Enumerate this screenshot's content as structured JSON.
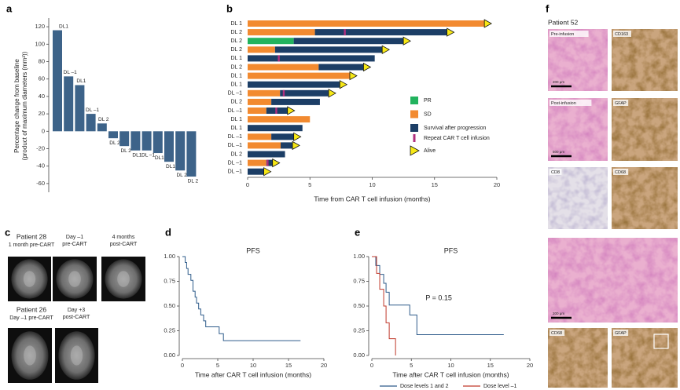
{
  "chart_data": [
    {
      "panel": "a",
      "type": "bar",
      "ylabel": [
        "Percentage change from baseline",
        "(product of maximum diameters (mm²))"
      ],
      "categories": [
        "DL1",
        "DL –1",
        "DL1",
        "DL –1",
        "DL 2",
        "DL 2",
        "DL 2",
        "DL1",
        "DL –1",
        "DL1",
        "DL1",
        "DL 2",
        "DL 2"
      ],
      "category_colors": [
        "#d6338a",
        "#8c8c8c",
        "#d6338a",
        "#8c8c8c",
        "#d9a21c",
        "#d9a21c",
        "#d9a21c",
        "#d6338a",
        "#8c8c8c",
        "#d6338a",
        "#d6338a",
        "#d9a21c",
        "#d9a21c"
      ],
      "values": [
        116,
        63,
        53,
        20,
        9,
        -8,
        -17,
        -22,
        -22,
        -25,
        -35,
        -45,
        -52
      ],
      "color": "#3d6389",
      "ylim": [
        -70,
        130
      ],
      "yticks": [
        -60,
        -40,
        -20,
        0,
        20,
        40,
        60,
        80,
        100,
        120
      ]
    },
    {
      "panel": "b",
      "type": "swimmer",
      "xlabel": "Time from CAR T cell infusion (months)",
      "categories": [
        "DL 1",
        "DL 2",
        "DL 2",
        "DL 2",
        "DL 1",
        "DL 2",
        "DL 1",
        "DL 1",
        "DL –1",
        "DL 2",
        "DL –1",
        "DL 1",
        "DL 1",
        "DL –1",
        "DL –1",
        "DL 2",
        "DL –1",
        "DL –1"
      ],
      "category_colors": [
        "#d6338a",
        "#d9a21c",
        "#d9a21c",
        "#d9a21c",
        "#d6338a",
        "#d9a21c",
        "#d6338a",
        "#d6338a",
        "#8c8c8c",
        "#d9a21c",
        "#8c8c8c",
        "#d6338a",
        "#d6338a",
        "#8c8c8c",
        "#8c8c8c",
        "#d9a21c",
        "#8c8c8c",
        "#8c8c8c"
      ],
      "series": [
        {
          "name": "PR",
          "color": "#22b35e",
          "values": [
            null,
            null,
            3.7,
            null,
            null,
            null,
            null,
            null,
            null,
            null,
            null,
            null,
            null,
            null,
            null,
            null,
            null,
            null
          ]
        },
        {
          "name": "SD",
          "color": "#f28a30",
          "values": [
            19,
            5.4,
            null,
            2.2,
            null,
            5.7,
            8.2,
            null,
            2.6,
            1.9,
            1.5,
            5.0,
            null,
            1.9,
            2.65,
            null,
            1.5,
            null
          ]
        },
        {
          "name": "Survival after progression",
          "color": "#1c3e66",
          "values": [
            null,
            10.6,
            8.8,
            8.6,
            10.2,
            3.6,
            null,
            7.4,
            3.9,
            3.9,
            1.7,
            null,
            4.4,
            1.8,
            0.95,
            3.0,
            0.5,
            1.3
          ]
        }
      ],
      "repeat_infusion": {
        "name": "Repeat CAR T cell infusion",
        "color": "#b02f7e",
        "x": [
          null,
          7.8,
          null,
          null,
          2.5,
          null,
          null,
          null,
          2.9,
          null,
          2.3,
          null,
          null,
          null,
          null,
          null,
          1.6,
          null
        ]
      },
      "alive": {
        "name": "Alive",
        "color": "#f7e816",
        "values": [
          true,
          true,
          true,
          true,
          false,
          true,
          true,
          true,
          true,
          false,
          true,
          false,
          false,
          true,
          true,
          false,
          true,
          true
        ]
      },
      "xlim": [
        0,
        20
      ],
      "xticks": [
        0,
        5,
        10,
        15,
        20
      ]
    },
    {
      "panel": "d",
      "type": "km",
      "title": "PFS",
      "xlabel": "Time after CAR T cell infusion (months)",
      "series": [
        {
          "name": "PFS",
          "color": "#2e5b8a",
          "x": [
            0,
            0.4,
            0.6,
            0.8,
            1.2,
            1.5,
            1.8,
            2.0,
            2.3,
            2.6,
            3.0,
            3.3,
            5.2,
            5.8,
            16.7
          ],
          "values": [
            1,
            0.94,
            0.88,
            0.82,
            0.76,
            0.65,
            0.59,
            0.53,
            0.47,
            0.41,
            0.35,
            0.29,
            0.22,
            0.15,
            0.15
          ]
        }
      ],
      "legend": false,
      "xlim": [
        0,
        20
      ],
      "xticks": [
        0,
        5,
        10,
        15,
        20
      ],
      "ylim": [
        0,
        1
      ],
      "yticks": [
        {
          "value": 0,
          "label": "0.00"
        },
        {
          "value": 0.25,
          "label": "0.25"
        },
        {
          "value": 0.5,
          "label": "0.50"
        },
        {
          "value": 0.75,
          "label": "0.75"
        },
        {
          "value": 1,
          "label": "1.00"
        }
      ]
    },
    {
      "panel": "e",
      "type": "km",
      "title": "PFS",
      "xlabel": "Time after CAR T cell infusion (months)",
      "annotation": "P = 0.15",
      "series": [
        {
          "name": "Dose levels 1 and 2",
          "color": "#2e5b8a",
          "x": [
            0,
            0.5,
            1.0,
            1.5,
            1.8,
            2.2,
            4.8,
            5.7,
            16.7
          ],
          "values": [
            1,
            0.91,
            0.82,
            0.73,
            0.64,
            0.51,
            0.41,
            0.21,
            0.21
          ]
        },
        {
          "name": "Dose level –1",
          "color": "#c0392b",
          "x": [
            0,
            0.6,
            1.0,
            1.5,
            1.8,
            2.2,
            3.0
          ],
          "values": [
            1,
            0.83,
            0.67,
            0.5,
            0.33,
            0.17,
            0
          ]
        }
      ],
      "legend": true,
      "xlim": [
        0,
        20
      ],
      "xticks": [
        0,
        5,
        10,
        15,
        20
      ],
      "ylim": [
        0,
        1
      ],
      "yticks": [
        {
          "value": 0,
          "label": "0.00"
        },
        {
          "value": 0.25,
          "label": "0.25"
        },
        {
          "value": 0.5,
          "label": "0.50"
        },
        {
          "value": 0.75,
          "label": "0.75"
        },
        {
          "value": 1,
          "label": "1.00"
        }
      ]
    }
  ],
  "panel_c": {
    "label": "c",
    "patients": [
      {
        "name": "Patient 28",
        "images": [
          {
            "caption": [
              "1 month pre-CART"
            ]
          },
          {
            "caption": [
              "Day –1",
              "pre-CART"
            ]
          },
          {
            "caption": [
              "4 months",
              "post-CART"
            ]
          }
        ]
      },
      {
        "name": "Patient 26",
        "images": [
          {
            "caption": [
              "Day –1 pre-CART"
            ]
          },
          {
            "caption": [
              "Day +3",
              "post-CART"
            ]
          }
        ]
      }
    ]
  },
  "panel_f": {
    "label": "f",
    "patient": "Patient 52",
    "images": [
      {
        "label": "Pre-infusion",
        "scale": "200 μm"
      },
      {
        "label": "CD163"
      },
      {
        "label": "Post-infusion",
        "scale": "500 μm"
      },
      {
        "label": "GFAP"
      },
      {
        "label": "CD8"
      },
      {
        "label": "CD68"
      },
      {
        "scale": "200 μm"
      },
      {
        "label": "CD68"
      },
      {
        "label": "GFAP"
      }
    ]
  }
}
